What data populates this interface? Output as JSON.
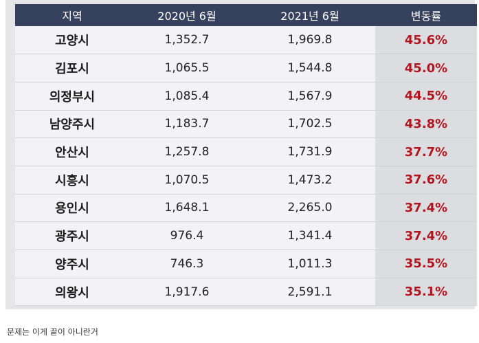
{
  "table": {
    "headers": [
      "지역",
      "2020년 6월",
      "2021년 6월",
      "변동률"
    ],
    "rows": [
      [
        "고양시",
        "1,352.7",
        "1,969.8",
        "45.6%"
      ],
      [
        "김포시",
        "1,065.5",
        "1,544.8",
        "45.0%"
      ],
      [
        "의정부시",
        "1,085.4",
        "1,567.9",
        "44.5%"
      ],
      [
        "남양주시",
        "1,183.7",
        "1,702.5",
        "43.8%"
      ],
      [
        "안산시",
        "1,257.8",
        "1,731.9",
        "37.7%"
      ],
      [
        "시흥시",
        "1,070.5",
        "1,473.2",
        "37.6%"
      ],
      [
        "용인시",
        "1,648.1",
        "2,265.0",
        "37.4%"
      ],
      [
        "광주시",
        "976.4",
        "1,341.4",
        "37.4%"
      ],
      [
        "양주시",
        "746.3",
        "1,011.3",
        "35.5%"
      ],
      [
        "의왕시",
        "1,917.6",
        "2,591.1",
        "35.1%"
      ]
    ]
  },
  "caption": "문제는 이게 끝이 아니란거",
  "colors": {
    "header_bg": "#36415d",
    "change_text": "#b3161f"
  }
}
